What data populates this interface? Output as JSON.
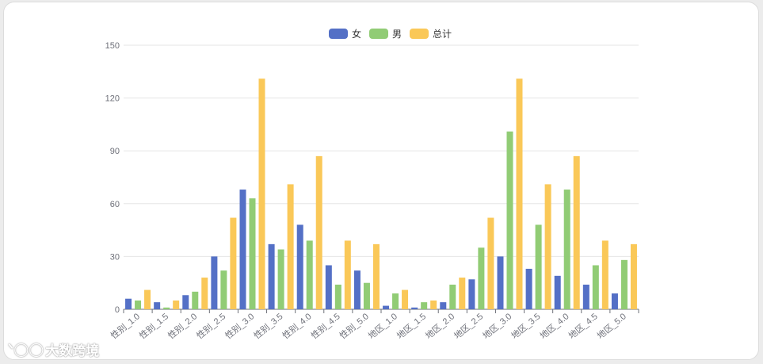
{
  "colors": {
    "female": "#5470c6",
    "male": "#91cc75",
    "total": "#fac858"
  },
  "watermark": {
    "logo_text": "大数跨境"
  },
  "chart_data": {
    "type": "bar",
    "categories": [
      "性别_1.0",
      "性别_1.5",
      "性别_2.0",
      "性别_2.5",
      "性别_3.0",
      "性别_3.5",
      "性别_4.0",
      "性别_4.5",
      "性别_5.0",
      "地区_1.0",
      "地区_1.5",
      "地区_2.0",
      "地区_2.5",
      "地区_3.0",
      "地区_3.5",
      "地区_4.0",
      "地区_4.5",
      "地区_5.0"
    ],
    "series": [
      {
        "name": "女",
        "color": "#5470c6",
        "values": [
          6,
          4,
          8,
          30,
          68,
          37,
          48,
          25,
          22,
          2,
          1,
          4,
          17,
          30,
          23,
          19,
          14,
          9
        ]
      },
      {
        "name": "男",
        "color": "#91cc75",
        "values": [
          5,
          1,
          10,
          22,
          63,
          34,
          39,
          14,
          15,
          9,
          4,
          14,
          35,
          101,
          48,
          68,
          25,
          28
        ]
      },
      {
        "name": "总计",
        "color": "#fac858",
        "values": [
          11,
          5,
          18,
          52,
          131,
          71,
          87,
          39,
          37,
          11,
          5,
          18,
          52,
          131,
          71,
          87,
          39,
          37
        ]
      }
    ],
    "ylim": [
      0,
      150
    ],
    "yticks": [
      0,
      30,
      60,
      90,
      120,
      150
    ],
    "xlabel": "",
    "ylabel": "",
    "grid": true,
    "legend_position": "top-center"
  }
}
